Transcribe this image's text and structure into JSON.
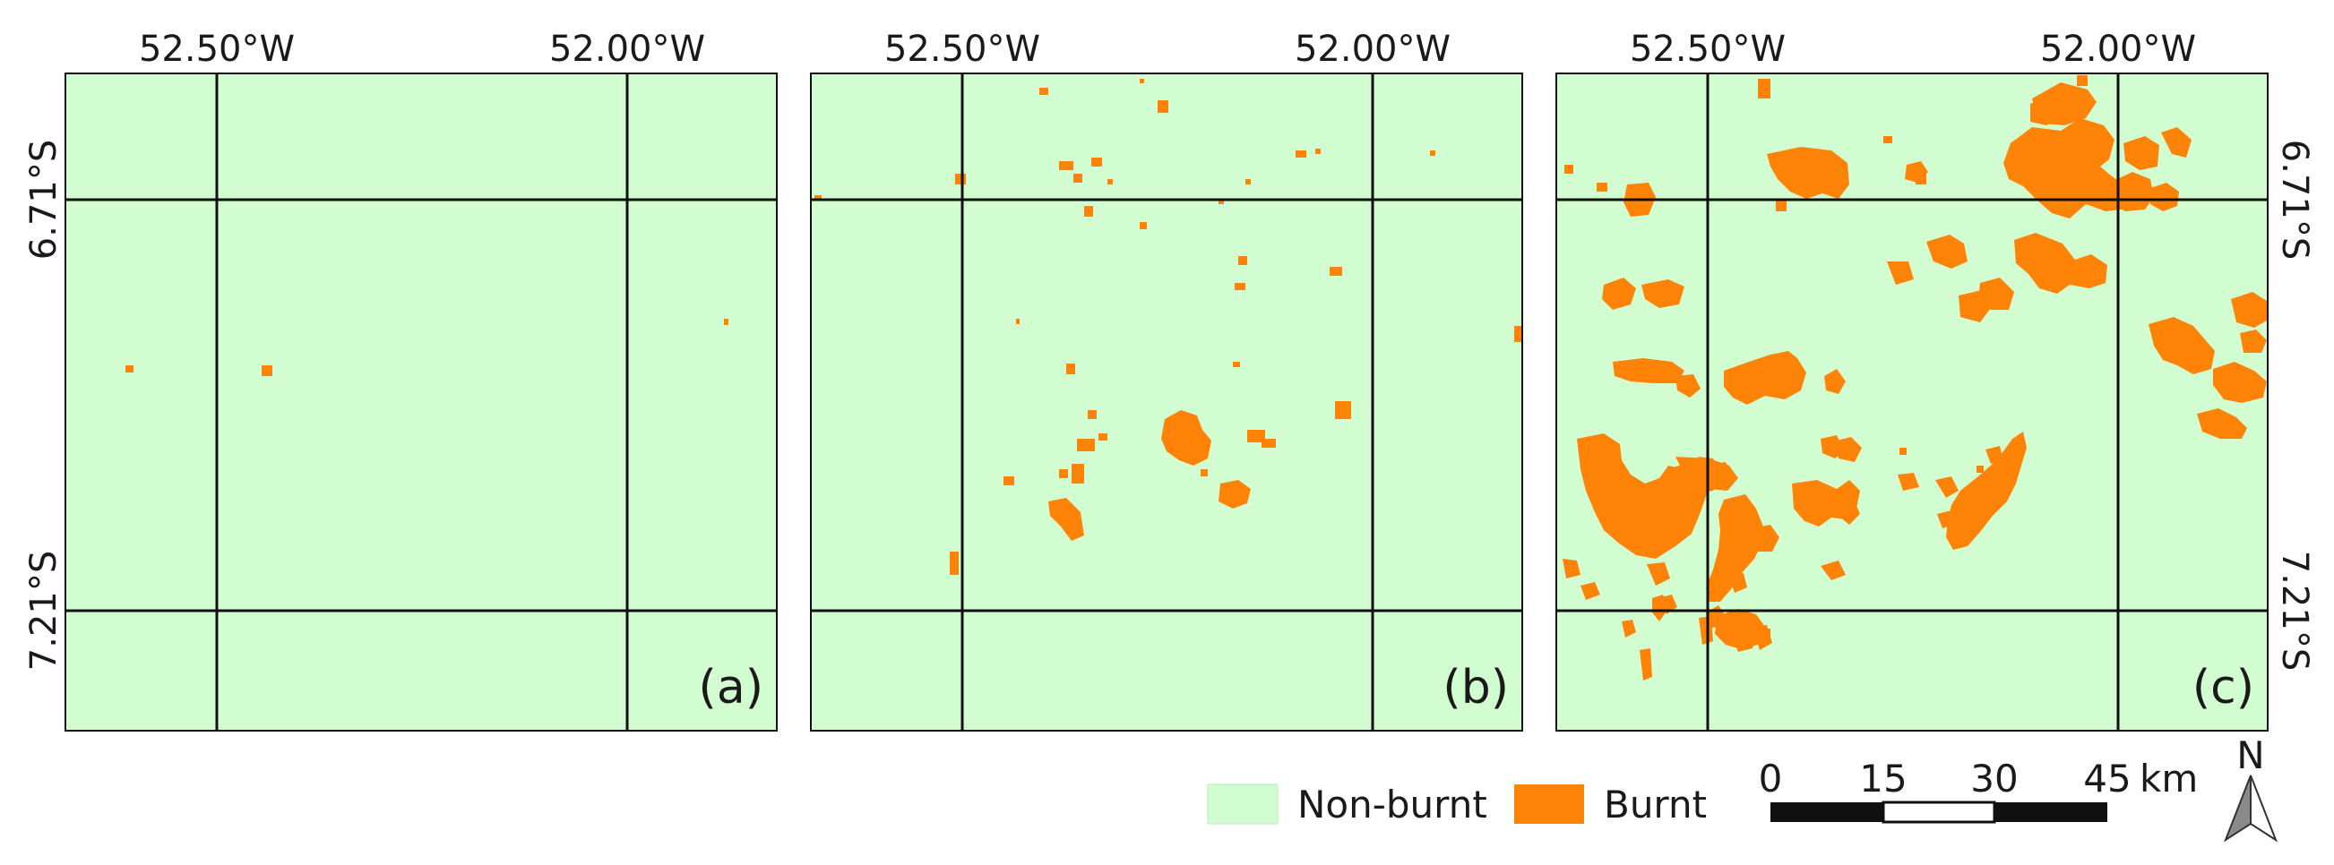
{
  "grid_labels": {
    "lon_left": "52.50°W",
    "lon_right": "52.00°W",
    "lat_top": "6.71°S",
    "lat_bottom": "7.21°S"
  },
  "panels": [
    {
      "id": "a",
      "label": "(a)"
    },
    {
      "id": "b",
      "label": "(b)"
    },
    {
      "id": "c",
      "label": "(c)"
    }
  ],
  "legend": {
    "items": [
      {
        "label": "Non-burnt",
        "color": "#d2fdd0"
      },
      {
        "label": "Burnt",
        "color": "#ff8307"
      }
    ]
  },
  "scale_bar": {
    "ticks": [
      "0",
      "15",
      "30",
      "45"
    ],
    "unit": "km"
  },
  "north_arrow": {
    "label": "N"
  },
  "colors": {
    "background": "#d2fdd0",
    "burnt": "#ff8307",
    "grid": "#111111"
  }
}
